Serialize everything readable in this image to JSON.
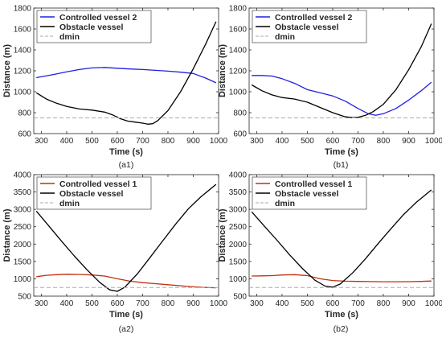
{
  "chart_data": [
    {
      "type": "line",
      "panel_label": "(a1)",
      "xlabel": "Time (s)",
      "ylabel": "Distance (m)",
      "xlim": [
        270,
        1000
      ],
      "ylim": [
        600,
        1800
      ],
      "xticks": [
        300,
        400,
        500,
        600,
        700,
        800,
        900,
        1000
      ],
      "yticks": [
        600,
        800,
        1000,
        1200,
        1400,
        1600,
        1800
      ],
      "legend_position": "top-left",
      "series": [
        {
          "name": "Controlled vessel 2",
          "color": "#2020e0",
          "style": "solid",
          "x": [
            280,
            350,
            400,
            450,
            500,
            550,
            600,
            650,
            700,
            750,
            800,
            850,
            900,
            950,
            990
          ],
          "y": [
            1135,
            1165,
            1190,
            1212,
            1228,
            1232,
            1225,
            1218,
            1212,
            1205,
            1197,
            1187,
            1175,
            1130,
            1085
          ]
        },
        {
          "name": "Obstacle vessel",
          "color": "#000000",
          "style": "solid",
          "x": [
            280,
            320,
            360,
            400,
            450,
            500,
            550,
            580,
            610,
            640,
            670,
            700,
            720,
            740,
            760,
            800,
            850,
            900,
            950,
            990
          ],
          "y": [
            990,
            930,
            890,
            860,
            835,
            825,
            805,
            780,
            745,
            720,
            710,
            700,
            690,
            695,
            725,
            820,
            1000,
            1220,
            1460,
            1670
          ]
        },
        {
          "name": "dmin",
          "color": "#aaaaaa",
          "style": "dashed",
          "x": [
            270,
            1000
          ],
          "y": [
            750,
            750
          ]
        }
      ]
    },
    {
      "type": "line",
      "panel_label": "(b1)",
      "xlabel": "Time (s)",
      "ylabel": "Distance (m)",
      "xlim": [
        270,
        1000
      ],
      "ylim": [
        600,
        1800
      ],
      "xticks": [
        300,
        400,
        500,
        600,
        700,
        800,
        900,
        1000
      ],
      "yticks": [
        600,
        800,
        1000,
        1200,
        1400,
        1600,
        1800
      ],
      "legend_position": "top-left",
      "series": [
        {
          "name": "Controlled vessel 2",
          "color": "#2020e0",
          "style": "solid",
          "x": [
            280,
            320,
            360,
            400,
            450,
            500,
            550,
            600,
            650,
            700,
            740,
            770,
            800,
            850,
            900,
            950,
            990
          ],
          "y": [
            1155,
            1155,
            1150,
            1125,
            1080,
            1020,
            990,
            960,
            910,
            840,
            790,
            775,
            790,
            840,
            920,
            1010,
            1090
          ]
        },
        {
          "name": "Obstacle vessel",
          "color": "#000000",
          "style": "solid",
          "x": [
            280,
            320,
            360,
            400,
            450,
            500,
            550,
            600,
            650,
            680,
            700,
            730,
            760,
            800,
            850,
            900,
            950,
            990
          ],
          "y": [
            1065,
            1010,
            970,
            945,
            930,
            900,
            850,
            800,
            760,
            752,
            755,
            775,
            810,
            880,
            1020,
            1210,
            1430,
            1650
          ]
        },
        {
          "name": "dmin",
          "color": "#aaaaaa",
          "style": "dashed",
          "x": [
            270,
            1000
          ],
          "y": [
            750,
            750
          ]
        }
      ]
    },
    {
      "type": "line",
      "panel_label": "(a2)",
      "xlabel": "Time (s)",
      "ylabel": "Distance (m)",
      "xlim": [
        270,
        1000
      ],
      "ylim": [
        500,
        4000
      ],
      "xticks": [
        300,
        400,
        500,
        600,
        700,
        800,
        900,
        1000
      ],
      "yticks": [
        500,
        1000,
        1500,
        2000,
        2500,
        3000,
        3500,
        4000
      ],
      "legend_position": "top-left",
      "series": [
        {
          "name": "Controlled vessel 1",
          "color": "#c03010",
          "style": "solid",
          "x": [
            280,
            320,
            360,
            400,
            450,
            500,
            550,
            600,
            650,
            700,
            750,
            800,
            850,
            900,
            950,
            990
          ],
          "y": [
            1060,
            1100,
            1120,
            1130,
            1125,
            1110,
            1080,
            1000,
            930,
            890,
            860,
            830,
            800,
            770,
            750,
            740
          ]
        },
        {
          "name": "Obstacle vessel",
          "color": "#000000",
          "style": "solid",
          "x": [
            280,
            330,
            380,
            430,
            480,
            530,
            570,
            600,
            630,
            680,
            730,
            780,
            830,
            880,
            930,
            990
          ],
          "y": [
            2950,
            2520,
            2080,
            1660,
            1260,
            900,
            680,
            640,
            760,
            1150,
            1620,
            2100,
            2570,
            3010,
            3360,
            3720
          ]
        },
        {
          "name": "dmin",
          "color": "#aaaaaa",
          "style": "dashed",
          "x": [
            270,
            1000
          ],
          "y": [
            750,
            750
          ]
        }
      ]
    },
    {
      "type": "line",
      "panel_label": "(b2)",
      "xlabel": "Time (s)",
      "ylabel": "Distance (m)",
      "xlim": [
        270,
        1000
      ],
      "ylim": [
        500,
        4000
      ],
      "xticks": [
        300,
        400,
        500,
        600,
        700,
        800,
        900,
        1000
      ],
      "yticks": [
        500,
        1000,
        1500,
        2000,
        2500,
        3000,
        3500,
        4000
      ],
      "legend_position": "top-left",
      "series": [
        {
          "name": "Controlled vessel 1",
          "color": "#c03010",
          "style": "solid",
          "x": [
            280,
            320,
            360,
            400,
            450,
            500,
            550,
            600,
            650,
            700,
            750,
            800,
            850,
            900,
            950,
            990
          ],
          "y": [
            1080,
            1085,
            1090,
            1110,
            1120,
            1090,
            1000,
            950,
            930,
            925,
            920,
            915,
            915,
            918,
            925,
            935
          ]
        },
        {
          "name": "Obstacle vessel",
          "color": "#000000",
          "style": "solid",
          "x": [
            280,
            330,
            380,
            430,
            480,
            530,
            570,
            600,
            630,
            680,
            730,
            780,
            830,
            880,
            930,
            990
          ],
          "y": [
            2930,
            2520,
            2110,
            1690,
            1300,
            960,
            790,
            760,
            850,
            1180,
            1580,
            2020,
            2440,
            2850,
            3200,
            3560
          ]
        },
        {
          "name": "dmin",
          "color": "#aaaaaa",
          "style": "dashed",
          "x": [
            270,
            1000
          ],
          "y": [
            750,
            750
          ]
        }
      ]
    }
  ]
}
